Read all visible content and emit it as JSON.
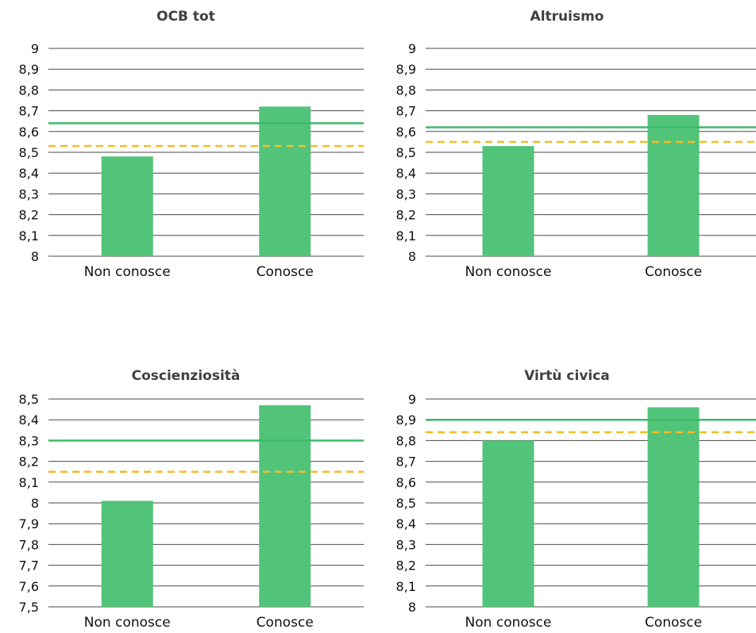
{
  "colors": {
    "bar": "#52c47a",
    "solid_line": "#3dba6a",
    "dashed_line": "#f2bd2a",
    "grid": "#4a4a4a"
  },
  "chart_data": [
    {
      "type": "bar",
      "title": "OCB tot",
      "categories": [
        "Non conosce",
        "Conosce"
      ],
      "values": [
        8.48,
        8.72
      ],
      "ylim": [
        8,
        9
      ],
      "yticks": [
        "8",
        "8,1",
        "8,2",
        "8,3",
        "8,4",
        "8,5",
        "8,6",
        "8,7",
        "8,8",
        "8,9",
        "9"
      ],
      "reference_lines": [
        {
          "style": "solid",
          "value": 8.64
        },
        {
          "style": "dashed",
          "value": 8.53
        }
      ],
      "grid": true
    },
    {
      "type": "bar",
      "title": "Altruismo",
      "categories": [
        "Non conosce",
        "Conosce"
      ],
      "values": [
        8.53,
        8.68
      ],
      "ylim": [
        8,
        9
      ],
      "yticks": [
        "8",
        "8,1",
        "8,2",
        "8,3",
        "8,4",
        "8,5",
        "8,6",
        "8,7",
        "8,8",
        "8,9",
        "9"
      ],
      "reference_lines": [
        {
          "style": "solid",
          "value": 8.62
        },
        {
          "style": "dashed",
          "value": 8.55
        }
      ],
      "grid": true
    },
    {
      "type": "bar",
      "title": "Coscienziosità",
      "categories": [
        "Non conosce",
        "Conosce"
      ],
      "values": [
        8.01,
        8.47
      ],
      "ylim": [
        7.5,
        8.5
      ],
      "yticks": [
        "7,5",
        "7,6",
        "7,7",
        "7,8",
        "7,9",
        "8",
        "8,1",
        "8,2",
        "8,3",
        "8,4",
        "8,5"
      ],
      "reference_lines": [
        {
          "style": "solid",
          "value": 8.3
        },
        {
          "style": "dashed",
          "value": 8.15
        }
      ],
      "grid": true
    },
    {
      "type": "bar",
      "title": "Virtù civica",
      "categories": [
        "Non conosce",
        "Conosce"
      ],
      "values": [
        8.8,
        8.96
      ],
      "ylim": [
        8,
        9
      ],
      "yticks": [
        "8",
        "8,1",
        "8,2",
        "8,3",
        "8,4",
        "8,5",
        "8,6",
        "8,7",
        "8,8",
        "8,9",
        "9"
      ],
      "reference_lines": [
        {
          "style": "solid",
          "value": 8.9
        },
        {
          "style": "dashed",
          "value": 8.84
        }
      ],
      "grid": true
    }
  ]
}
